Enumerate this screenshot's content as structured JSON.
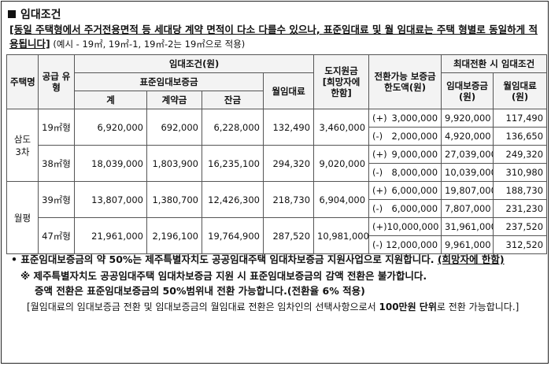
{
  "section": {
    "title": "임대조건"
  },
  "intro": {
    "bold": "[동일 주택형에서 주거전용면적 등 세대당 계약 면적이 다소 다를수 있으나, 표준임대료 및 월 임대료는 주택 형별로 동일하게 적용됩니다]",
    "note": " (예시 - 19㎡, 19㎡-1, 19㎡-2는 19㎡으로 적용)"
  },
  "table": {
    "headers": {
      "type": "주택명",
      "supply": "공급 유형",
      "rent_cond": "임대조건(원)",
      "deposit_std": "표준임대보증금",
      "total": "계",
      "contract": "계약금",
      "balance": "잔금",
      "monthly": "월임대료",
      "dodge": "도지원금 [희망자에 한함]",
      "conv_limit": "전환가능 보증금 한도액(원)",
      "max_conv": "최대전환 시 임대조건",
      "max_deposit": "임대보증금 (원)",
      "max_rent": "월임대료 (원)"
    },
    "groups": [
      {
        "name": "삼도 3차",
        "units": [
          {
            "supply": "19㎡형",
            "total": "6,920,000",
            "contract": "692,000",
            "balance": "6,228,000",
            "monthly": "132,490",
            "dodge": "3,460,000",
            "rows": [
              {
                "sign": "(+)",
                "conv": "3,000,000",
                "deposit": "9,920,000",
                "rent": "117,490"
              },
              {
                "sign": "(-)",
                "conv": "2,000,000",
                "deposit": "4,920,000",
                "rent": "136,650"
              }
            ]
          },
          {
            "supply": "38㎡형",
            "total": "18,039,000",
            "contract": "1,803,900",
            "balance": "16,235,100",
            "monthly": "294,320",
            "dodge": "9,020,000",
            "rows": [
              {
                "sign": "(+)",
                "conv": "9,000,000",
                "deposit": "27,039,000",
                "rent": "249,320"
              },
              {
                "sign": "(-)",
                "conv": "8,000,000",
                "deposit": "10,039,000",
                "rent": "310,980"
              }
            ]
          }
        ]
      },
      {
        "name": "월평",
        "units": [
          {
            "supply": "39㎡형",
            "total": "13,807,000",
            "contract": "1,380,700",
            "balance": "12,426,300",
            "monthly": "218,730",
            "dodge": "6,904,000",
            "rows": [
              {
                "sign": "(+)",
                "conv": "6,000,000",
                "deposit": "19,807,000",
                "rent": "188,730"
              },
              {
                "sign": "(-)",
                "conv": "6,000,000",
                "deposit": "7,807,000",
                "rent": "231,230"
              }
            ]
          },
          {
            "supply": "47㎡형",
            "total": "21,961,000",
            "contract": "2,196,100",
            "balance": "19,764,900",
            "monthly": "287,520",
            "dodge": "10,981,000",
            "rows": [
              {
                "sign": "(+)",
                "conv": "10,000,000",
                "deposit": "31,961,000",
                "rent": "237,520"
              },
              {
                "sign": "(-)",
                "conv": "12,000,000",
                "deposit": "9,961,000",
                "rent": "312,520"
              }
            ]
          }
        ]
      }
    ]
  },
  "notes": {
    "n1_a": "표준임대보증금의 약 50%는 제주특별자치도 공공임대주택 임대차보증금 지원사업으로 지원합니다.",
    "n1_b": "(희망자에 한함)",
    "n2_a": "제주특별자치도 공공임대주택 임대차보증금 지원 시 표준임대보증금의 감액 전환은 불가합니다.",
    "n2_b": "증액 전환은 표준임대보증금의 50%범위내 전환 가능합니다.(전환율 6% 적용)",
    "n3_a": "[월임대료의 임대보증금 전환 및 임대보증금의 월임대료 전환은 임차인의 선택사항으로서 ",
    "n3_b": "100만원 단위",
    "n3_c": "로 전환 가능합니다.]"
  }
}
